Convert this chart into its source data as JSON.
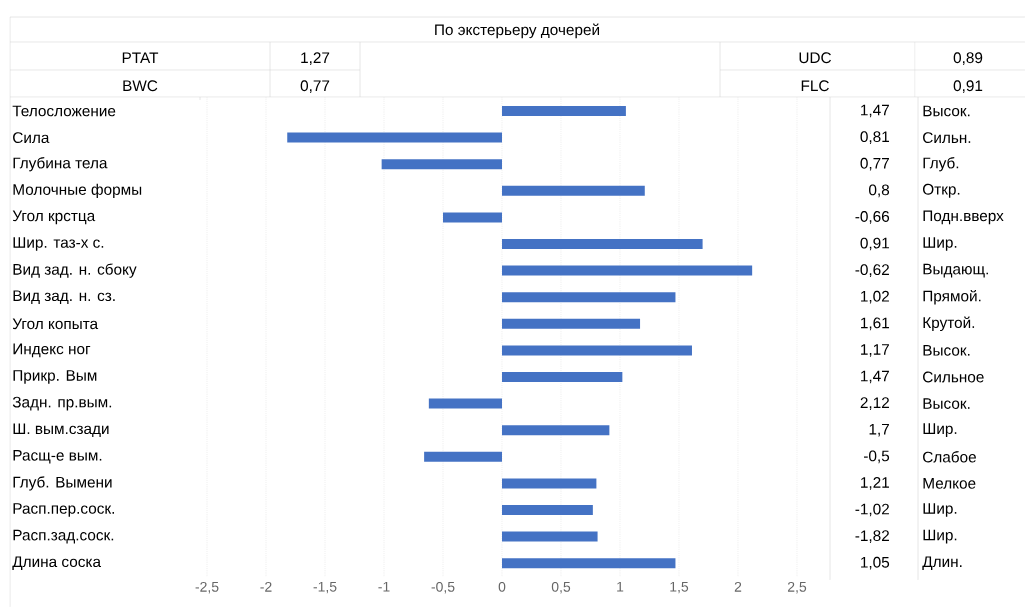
{
  "chart_data": {
    "type": "bar",
    "orientation": "horizontal",
    "title": "По экстерьеру дочерей",
    "categories": [
      "Телосложение",
      "Сила",
      "Глубина тела",
      "Молочные формы",
      "Угол крстца",
      "Шир. таз-х с.",
      "Вид зад. н. сбоку",
      "Вид зад. н. сз.",
      "Угол копыта",
      "Индекс ног",
      "Прикр. Вым",
      "Задн. пр.вым.",
      "Ш. вым.сзади",
      "Расщ-е вым.",
      "Глуб. Вымени",
      "Расп.пер.соск.",
      "Расп.зад.соск.",
      "Длина соска"
    ],
    "values": [
      1.05,
      -1.82,
      -1.02,
      1.21,
      -0.5,
      1.7,
      2.12,
      1.47,
      1.17,
      1.61,
      1.02,
      -0.62,
      0.91,
      -0.66,
      0.8,
      0.77,
      0.81,
      1.47
    ],
    "color": "#4472c4",
    "xlim": [
      -2.5,
      2.5
    ],
    "xticks": [
      {
        "value": -2.5,
        "label": "-2,5"
      },
      -2,
      {
        "value": -1.5,
        "label": "-1,5"
      },
      -1,
      {
        "value": -0.5,
        "label": "-0,5"
      },
      0,
      {
        "value": 0.5,
        "label": "0,5"
      },
      1,
      {
        "value": 1.5,
        "label": "1,5"
      },
      2,
      {
        "value": 2.5,
        "label": "2,5"
      }
    ],
    "grid": "x",
    "annotations": [
      "PTAT",
      "1,27",
      "UDC",
      "0,89",
      "BWC",
      "0,77",
      "FLC",
      "0,91",
      "1,47",
      "Высок.",
      "0,81",
      "Сильн.",
      "0,77",
      "Глуб.",
      "0,8",
      "Откр.",
      "-0,66",
      "Подн.вверх",
      "0,91",
      "Шир.",
      "-0,62",
      "Выдающ.",
      "1,02",
      "Прямой.",
      "1,61",
      "Крутой.",
      "1,17",
      "Высок.",
      "1,47",
      "Сильное",
      "2,12",
      "Высок.",
      "1,7",
      "Шир.",
      "-0,5",
      "Слабое",
      "1,21",
      "Мелкое",
      "-1,02",
      "Шир.",
      "-1,82",
      "Шир.",
      "1,05",
      "Длин."
    ]
  }
}
